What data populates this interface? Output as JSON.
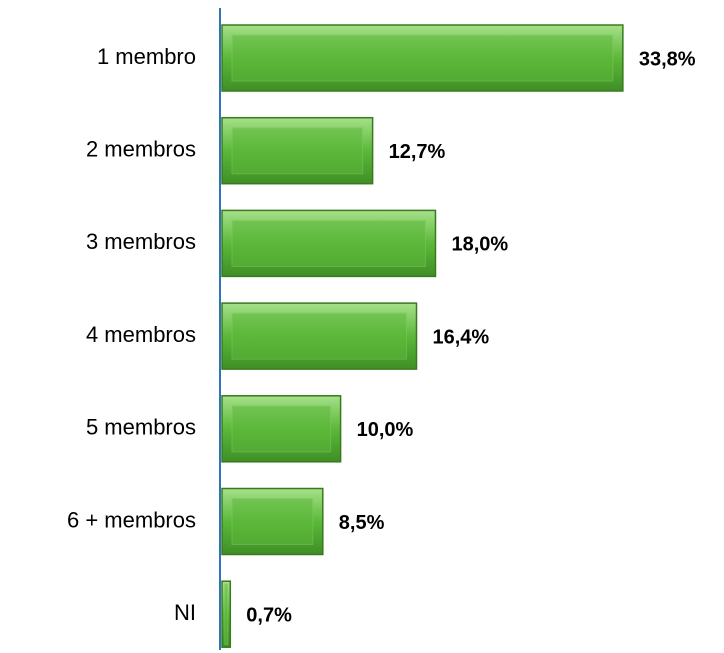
{
  "chart_data": {
    "type": "bar",
    "orientation": "horizontal",
    "categories": [
      "1 membro",
      "2 membros",
      "3 membros",
      "4 membros",
      "5 membros",
      "6 + membros",
      "NI"
    ],
    "values": [
      33.8,
      12.7,
      18.0,
      16.4,
      10.0,
      8.5,
      0.7
    ],
    "value_labels": [
      "33,8%",
      "12,7%",
      "18,0%",
      "16,4%",
      "10,0%",
      "8,5%",
      "0,7%"
    ],
    "color": "#5cb83a"
  }
}
